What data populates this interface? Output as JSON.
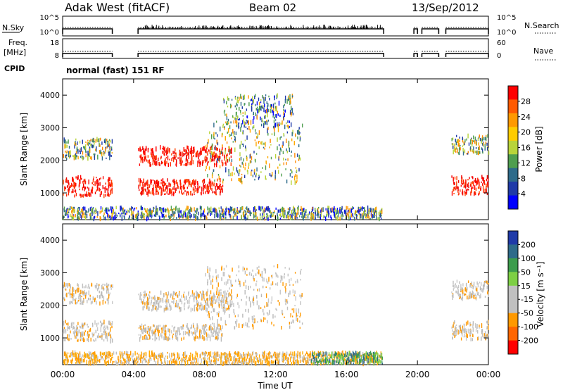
{
  "header": {
    "station": "Adak West (fitACF)",
    "beam": "Beam 02",
    "date": "13/Sep/2012"
  },
  "chart_data": [
    {
      "type": "line",
      "panel": "noise",
      "left_label": "N.Sky",
      "right_label": "N.Search",
      "left_ticks": [
        "10^5",
        "10^0"
      ],
      "right_ticks": [
        "10^5",
        "10^0"
      ],
      "segments_hours": [
        [
          0.0,
          2.8
        ],
        [
          4.25,
          18.1
        ],
        [
          19.8,
          20.0
        ],
        [
          20.25,
          21.2
        ],
        [
          21.6,
          24.0
        ]
      ]
    },
    {
      "type": "line",
      "panel": "frequency",
      "left_label": "Freq.",
      "left_unit": "[MHz]",
      "right_label": "Nave",
      "left_ticks": [
        "18",
        "8"
      ],
      "right_ticks": [
        "60",
        "0"
      ]
    },
    {
      "type": "text",
      "panel": "cpid",
      "label": "CPID",
      "value": "normal (fast) 151 RF"
    },
    {
      "type": "heatmap",
      "panel": "power",
      "ylabel": "Slant Range [km]",
      "ylim": [
        180,
        4500
      ],
      "yticks": [
        1000,
        2000,
        3000,
        4000
      ],
      "xlim_hours": [
        0,
        24
      ],
      "colorbar": {
        "label": "Power [dB]",
        "ticks": [
          "28",
          "24",
          "20",
          "16",
          "12",
          "8",
          "4"
        ],
        "colors": [
          "#ff0000",
          "#ff5a00",
          "#ff9900",
          "#ffcc00",
          "#b8d43a",
          "#4f9e4f",
          "#2e6b8a",
          "#1f3aa8",
          "#0000ff"
        ]
      },
      "echo_bands": [
        {
          "t": [
            0.0,
            2.8
          ],
          "r": [
            900,
            1500
          ],
          "level": "high"
        },
        {
          "t": [
            0.0,
            2.8
          ],
          "r": [
            2050,
            2650
          ],
          "level": "mid"
        },
        {
          "t": [
            4.25,
            9.0
          ],
          "r": [
            950,
            1400
          ],
          "level": "high"
        },
        {
          "t": [
            4.25,
            9.5
          ],
          "r": [
            1850,
            2400
          ],
          "level": "high"
        },
        {
          "t": [
            8.0,
            13.5
          ],
          "r": [
            1300,
            3200
          ],
          "level": "mid"
        },
        {
          "t": [
            9.0,
            13.0
          ],
          "r": [
            3000,
            4000
          ],
          "level": "low"
        },
        {
          "t": [
            0.0,
            18.0
          ],
          "r": [
            200,
            550
          ],
          "level": "low"
        },
        {
          "t": [
            21.9,
            24.0
          ],
          "r": [
            950,
            1500
          ],
          "level": "high"
        },
        {
          "t": [
            21.9,
            24.0
          ],
          "r": [
            2200,
            2750
          ],
          "level": "mid"
        }
      ]
    },
    {
      "type": "heatmap",
      "panel": "velocity",
      "xlabel": "Time UT",
      "ylabel": "Slant Range [km]",
      "ylim": [
        180,
        4500
      ],
      "yticks": [
        1000,
        2000,
        3000,
        4000
      ],
      "xlim_hours": [
        0,
        24
      ],
      "xticks": [
        "00:00",
        "04:00",
        "08:00",
        "12:00",
        "16:00",
        "20:00",
        "00:00"
      ],
      "colorbar": {
        "label": "Velocity [m s⁻¹]",
        "ticks": [
          "200",
          "100",
          "50",
          "15",
          "-15",
          "-50",
          "-100",
          "-200"
        ],
        "colors": [
          "#1f3aa8",
          "#2e6b8a",
          "#3c9c4c",
          "#7dcf44",
          "#c0c0c0",
          "#c0c0c0",
          "#ff9900",
          "#ff6600",
          "#ff0000"
        ]
      },
      "echo_bands": [
        {
          "t": [
            0.0,
            2.8
          ],
          "r": [
            900,
            1500
          ],
          "level": "ground"
        },
        {
          "t": [
            0.0,
            2.8
          ],
          "r": [
            2050,
            2650
          ],
          "level": "ground"
        },
        {
          "t": [
            4.25,
            9.0
          ],
          "r": [
            950,
            1400
          ],
          "level": "ground"
        },
        {
          "t": [
            4.25,
            9.5
          ],
          "r": [
            1850,
            2400
          ],
          "level": "ground"
        },
        {
          "t": [
            8.0,
            13.5
          ],
          "r": [
            1300,
            3200
          ],
          "level": "ground"
        },
        {
          "t": [
            0.0,
            18.0
          ],
          "r": [
            200,
            550
          ],
          "level": "neg"
        },
        {
          "t": [
            14.0,
            18.0
          ],
          "r": [
            200,
            550
          ],
          "level": "pos"
        },
        {
          "t": [
            21.9,
            24.0
          ],
          "r": [
            950,
            1500
          ],
          "level": "ground"
        },
        {
          "t": [
            21.9,
            24.0
          ],
          "r": [
            2200,
            2750
          ],
          "level": "ground"
        }
      ]
    }
  ]
}
